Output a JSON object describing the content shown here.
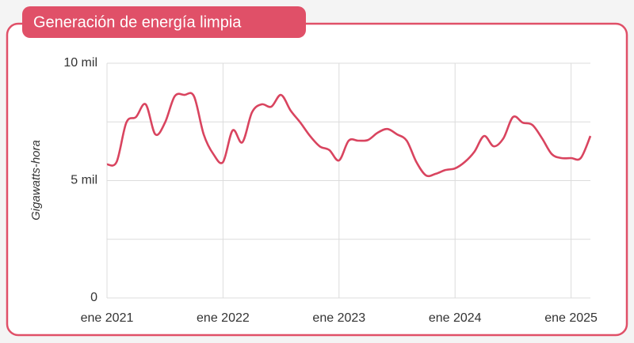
{
  "chart_data": {
    "type": "line",
    "title": "Generación de energía limpia",
    "ylabel": "Gigawatts-hora",
    "x": [
      "2021-01",
      "2021-02",
      "2021-03",
      "2021-04",
      "2021-05",
      "2021-06",
      "2021-07",
      "2021-08",
      "2021-09",
      "2021-10",
      "2021-11",
      "2021-12",
      "2022-01",
      "2022-02",
      "2022-03",
      "2022-04",
      "2022-05",
      "2022-06",
      "2022-07",
      "2022-08",
      "2022-09",
      "2022-10",
      "2022-11",
      "2022-12",
      "2023-01",
      "2023-02",
      "2023-03",
      "2023-04",
      "2023-05",
      "2023-06",
      "2023-07",
      "2023-08",
      "2023-09",
      "2023-10",
      "2023-11",
      "2023-12",
      "2024-01",
      "2024-02",
      "2024-03",
      "2024-04",
      "2024-05",
      "2024-06",
      "2024-07",
      "2024-08",
      "2024-09",
      "2024-10",
      "2024-11",
      "2024-12",
      "2025-01",
      "2025-02",
      "2025-03"
    ],
    "series": [
      {
        "name": "Gigawatts-hora",
        "color": "#d9445f",
        "values": [
          5690,
          5800,
          7470,
          7710,
          8250,
          6970,
          7470,
          8590,
          8650,
          8590,
          6970,
          6130,
          5790,
          7140,
          6630,
          7910,
          8250,
          8150,
          8650,
          7980,
          7470,
          6900,
          6460,
          6300,
          5860,
          6700,
          6700,
          6730,
          7040,
          7200,
          6970,
          6700,
          5790,
          5220,
          5290,
          5450,
          5520,
          5790,
          6230,
          6900,
          6460,
          6800,
          7710,
          7470,
          7370,
          6800,
          6130,
          5960,
          5960,
          5960,
          6900
        ]
      }
    ],
    "xlim": [
      "2021-01",
      "2025-03"
    ],
    "xticks": [
      {
        "value": "2021-01",
        "label": "ene 2021"
      },
      {
        "value": "2022-01",
        "label": "ene 2022"
      },
      {
        "value": "2023-01",
        "label": "ene 2023"
      },
      {
        "value": "2024-01",
        "label": "ene 2024"
      },
      {
        "value": "2025-01",
        "label": "ene 2025"
      }
    ],
    "ylim": [
      0,
      10000
    ],
    "yticks": [
      0,
      {
        "value": 5000,
        "label": "5 mil"
      },
      {
        "value": 10000,
        "label": "10 mil"
      }
    ],
    "y_minor_ticks": [
      2500,
      7500
    ],
    "grid": true
  }
}
